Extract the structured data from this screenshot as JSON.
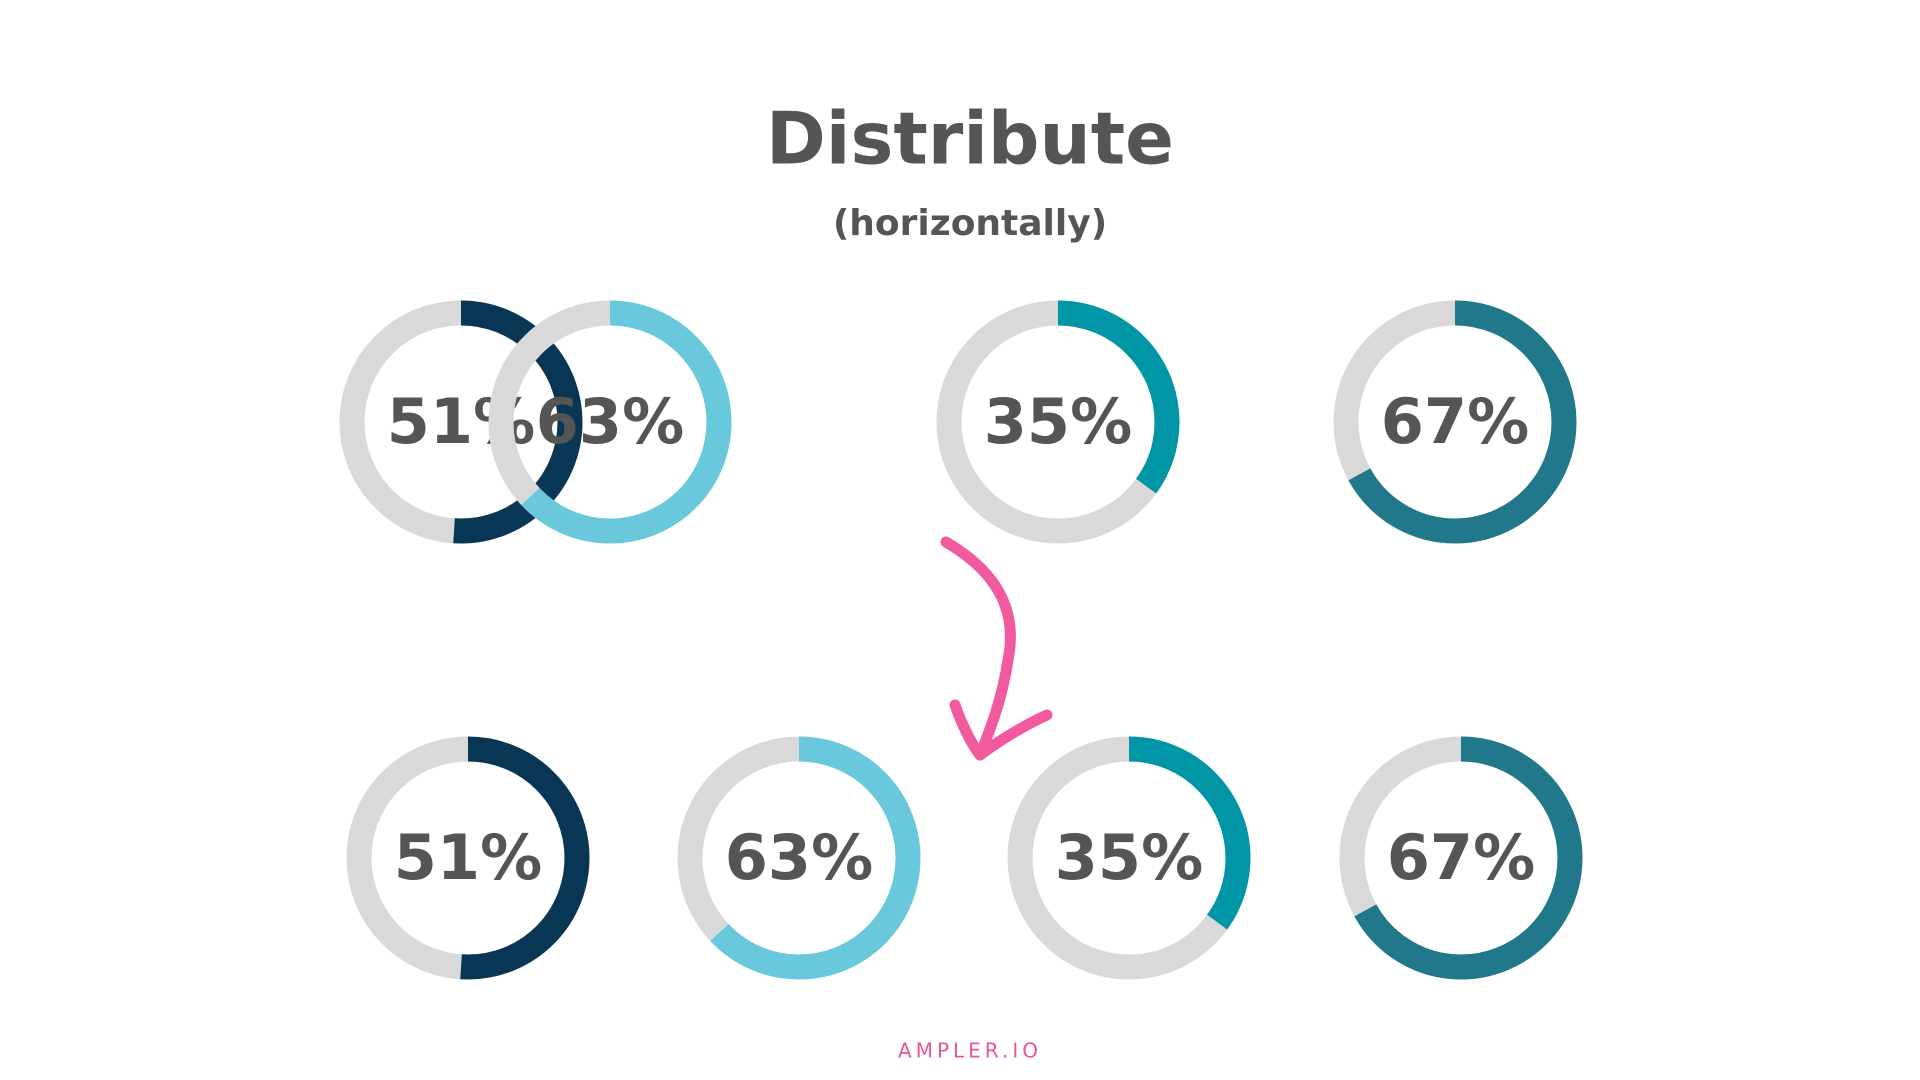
{
  "header": {
    "title": "Distribute",
    "subtitle": "(horizontally)"
  },
  "rows": [
    {
      "donuts": [
        {
          "value": 51,
          "label": "51%",
          "color": "#0a3656"
        },
        {
          "value": 63,
          "label": "63%",
          "color": "#6ac8dc"
        },
        {
          "value": 35,
          "label": "35%",
          "color": "#0096a6"
        },
        {
          "value": 67,
          "label": "67%",
          "color": "#20788a"
        }
      ]
    },
    {
      "donuts": [
        {
          "value": 51,
          "label": "51%",
          "color": "#0a3656"
        },
        {
          "value": 63,
          "label": "63%",
          "color": "#6ac8dc"
        },
        {
          "value": 35,
          "label": "35%",
          "color": "#0096a6"
        },
        {
          "value": 67,
          "label": "67%",
          "color": "#20788a"
        }
      ]
    }
  ],
  "footer": "AMPLER.IO"
}
